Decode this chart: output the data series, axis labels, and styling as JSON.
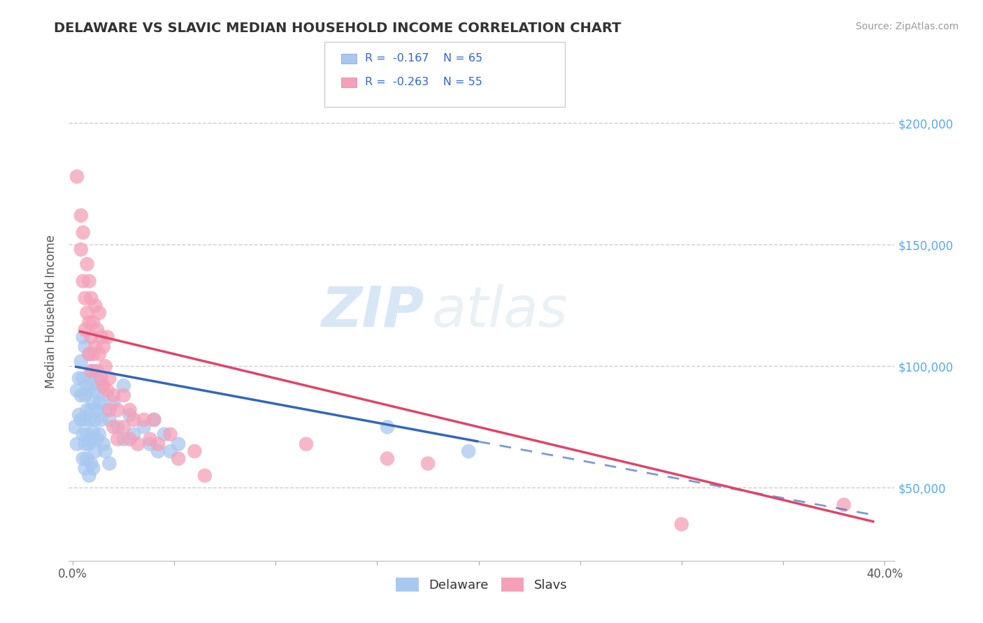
{
  "title": "DELAWARE VS SLAVIC MEDIAN HOUSEHOLD INCOME CORRELATION CHART",
  "source": "Source: ZipAtlas.com",
  "ylabel": "Median Household Income",
  "xlim": [
    -0.002,
    0.405
  ],
  "ylim": [
    20000,
    225000
  ],
  "xtick_positions": [
    0.0,
    0.05,
    0.1,
    0.15,
    0.2,
    0.25,
    0.3,
    0.35,
    0.4
  ],
  "xticklabels": [
    "0.0%",
    "",
    "",
    "",
    "",
    "",
    "",
    "",
    "40.0%"
  ],
  "ytick_positions": [
    50000,
    100000,
    150000,
    200000
  ],
  "yticklabels": [
    "$50,000",
    "$100,000",
    "$150,000",
    "$200,000"
  ],
  "grid_color": "#cccccc",
  "background_color": "#ffffff",
  "watermark_text": "ZIP",
  "watermark_text2": "atlas",
  "delaware_color": "#a8c8f0",
  "slavic_color": "#f4a0b8",
  "delaware_line_color": "#3366bb",
  "slavic_line_color": "#e04468",
  "delaware_line_solid_end": 0.2,
  "delaware_line_dashed_start": 0.2,
  "delaware_line_dashed_end": 0.395,
  "slavic_line_start": 0.003,
  "slavic_line_end": 0.395,
  "reg_delaware": [
    100000,
    -155000
  ],
  "reg_slavic": [
    115000,
    -200000
  ],
  "delaware_scatter": [
    [
      0.001,
      75000
    ],
    [
      0.002,
      68000
    ],
    [
      0.002,
      90000
    ],
    [
      0.003,
      95000
    ],
    [
      0.003,
      80000
    ],
    [
      0.004,
      102000
    ],
    [
      0.004,
      88000
    ],
    [
      0.004,
      78000
    ],
    [
      0.005,
      112000
    ],
    [
      0.005,
      95000
    ],
    [
      0.005,
      72000
    ],
    [
      0.005,
      62000
    ],
    [
      0.006,
      108000
    ],
    [
      0.006,
      88000
    ],
    [
      0.006,
      78000
    ],
    [
      0.006,
      68000
    ],
    [
      0.006,
      58000
    ],
    [
      0.007,
      92000
    ],
    [
      0.007,
      82000
    ],
    [
      0.007,
      72000
    ],
    [
      0.007,
      62000
    ],
    [
      0.008,
      105000
    ],
    [
      0.008,
      90000
    ],
    [
      0.008,
      78000
    ],
    [
      0.008,
      68000
    ],
    [
      0.008,
      55000
    ],
    [
      0.009,
      95000
    ],
    [
      0.009,
      82000
    ],
    [
      0.009,
      70000
    ],
    [
      0.009,
      60000
    ],
    [
      0.01,
      98000
    ],
    [
      0.01,
      85000
    ],
    [
      0.01,
      73000
    ],
    [
      0.01,
      58000
    ],
    [
      0.011,
      90000
    ],
    [
      0.011,
      78000
    ],
    [
      0.011,
      65000
    ],
    [
      0.012,
      95000
    ],
    [
      0.012,
      82000
    ],
    [
      0.012,
      70000
    ],
    [
      0.013,
      85000
    ],
    [
      0.013,
      72000
    ],
    [
      0.014,
      92000
    ],
    [
      0.014,
      78000
    ],
    [
      0.015,
      88000
    ],
    [
      0.015,
      68000
    ],
    [
      0.016,
      82000
    ],
    [
      0.016,
      65000
    ],
    [
      0.018,
      78000
    ],
    [
      0.018,
      60000
    ],
    [
      0.02,
      85000
    ],
    [
      0.022,
      75000
    ],
    [
      0.025,
      92000
    ],
    [
      0.025,
      70000
    ],
    [
      0.028,
      80000
    ],
    [
      0.03,
      72000
    ],
    [
      0.035,
      75000
    ],
    [
      0.038,
      68000
    ],
    [
      0.04,
      78000
    ],
    [
      0.042,
      65000
    ],
    [
      0.045,
      72000
    ],
    [
      0.048,
      65000
    ],
    [
      0.052,
      68000
    ],
    [
      0.155,
      75000
    ],
    [
      0.195,
      65000
    ]
  ],
  "slavic_scatter": [
    [
      0.002,
      178000
    ],
    [
      0.004,
      162000
    ],
    [
      0.004,
      148000
    ],
    [
      0.005,
      155000
    ],
    [
      0.005,
      135000
    ],
    [
      0.006,
      128000
    ],
    [
      0.006,
      115000
    ],
    [
      0.007,
      142000
    ],
    [
      0.007,
      122000
    ],
    [
      0.008,
      135000
    ],
    [
      0.008,
      118000
    ],
    [
      0.008,
      105000
    ],
    [
      0.009,
      128000
    ],
    [
      0.009,
      112000
    ],
    [
      0.009,
      98000
    ],
    [
      0.01,
      118000
    ],
    [
      0.01,
      105000
    ],
    [
      0.011,
      125000
    ],
    [
      0.011,
      108000
    ],
    [
      0.012,
      115000
    ],
    [
      0.012,
      98000
    ],
    [
      0.013,
      122000
    ],
    [
      0.013,
      105000
    ],
    [
      0.014,
      112000
    ],
    [
      0.014,
      95000
    ],
    [
      0.015,
      108000
    ],
    [
      0.015,
      92000
    ],
    [
      0.016,
      100000
    ],
    [
      0.017,
      112000
    ],
    [
      0.017,
      90000
    ],
    [
      0.018,
      95000
    ],
    [
      0.018,
      82000
    ],
    [
      0.02,
      88000
    ],
    [
      0.02,
      75000
    ],
    [
      0.022,
      82000
    ],
    [
      0.022,
      70000
    ],
    [
      0.025,
      88000
    ],
    [
      0.025,
      75000
    ],
    [
      0.028,
      82000
    ],
    [
      0.028,
      70000
    ],
    [
      0.03,
      78000
    ],
    [
      0.032,
      68000
    ],
    [
      0.035,
      78000
    ],
    [
      0.038,
      70000
    ],
    [
      0.04,
      78000
    ],
    [
      0.042,
      68000
    ],
    [
      0.048,
      72000
    ],
    [
      0.052,
      62000
    ],
    [
      0.06,
      65000
    ],
    [
      0.065,
      55000
    ],
    [
      0.115,
      68000
    ],
    [
      0.155,
      62000
    ],
    [
      0.175,
      60000
    ],
    [
      0.3,
      35000
    ],
    [
      0.38,
      43000
    ]
  ]
}
